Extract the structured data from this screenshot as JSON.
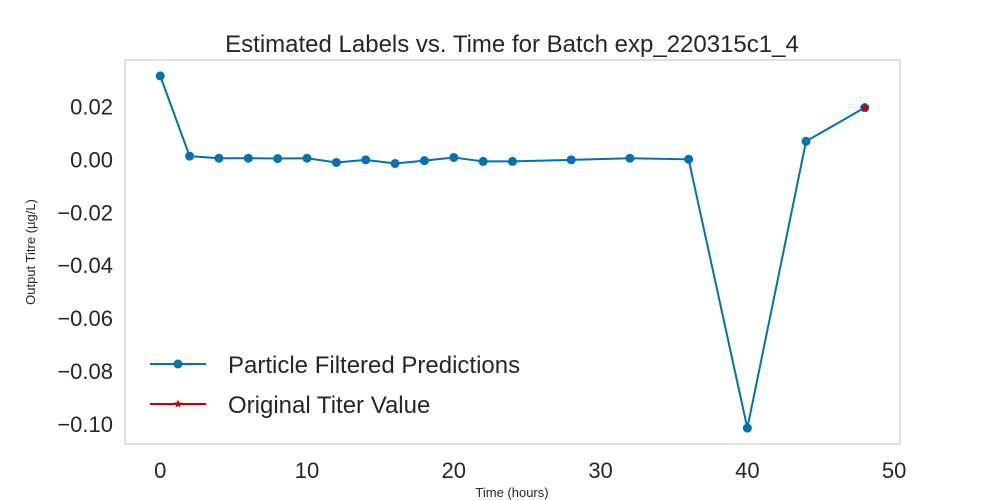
{
  "chart_data": {
    "type": "line",
    "title": "Estimated Labels vs. Time for Batch exp_220315c1_4",
    "xlabel": "Time (hours)",
    "ylabel": "Output Titre (µg/L)",
    "xlim": [
      -2.4,
      50.4
    ],
    "ylim": [
      -0.1075,
      0.0375
    ],
    "xticks": [
      0,
      10,
      20,
      30,
      40,
      50
    ],
    "xtick_labels": [
      "0",
      "10",
      "20",
      "30",
      "40",
      "50"
    ],
    "yticks": [
      -0.1,
      -0.08,
      -0.06,
      -0.04,
      -0.02,
      0.0,
      0.02
    ],
    "ytick_labels": [
      "−0.10",
      "−0.08",
      "−0.06",
      "−0.04",
      "−0.02",
      "0.00",
      "0.02"
    ],
    "grid": false,
    "legend_position": "lower-left",
    "series": [
      {
        "name": "Particle Filtered Predictions",
        "color": "#0072b2",
        "marker": "circle",
        "x": [
          0,
          2,
          4,
          6,
          8,
          10,
          12,
          14,
          16,
          18,
          20,
          22,
          24,
          28,
          32,
          36,
          40,
          44,
          48
        ],
        "y": [
          0.0315,
          0.0012,
          0.0004,
          0.0004,
          0.0003,
          0.0004,
          -0.0012,
          -0.0002,
          -0.0016,
          -0.0005,
          0.0007,
          -0.0008,
          -0.0008,
          -0.0002,
          0.0004,
          0.0,
          -0.1015,
          0.0068,
          0.0195
        ]
      },
      {
        "name": "Original Titer Value",
        "color": "#c00000",
        "marker": "star",
        "x": [
          48
        ],
        "y": [
          0.0195
        ]
      }
    ]
  }
}
